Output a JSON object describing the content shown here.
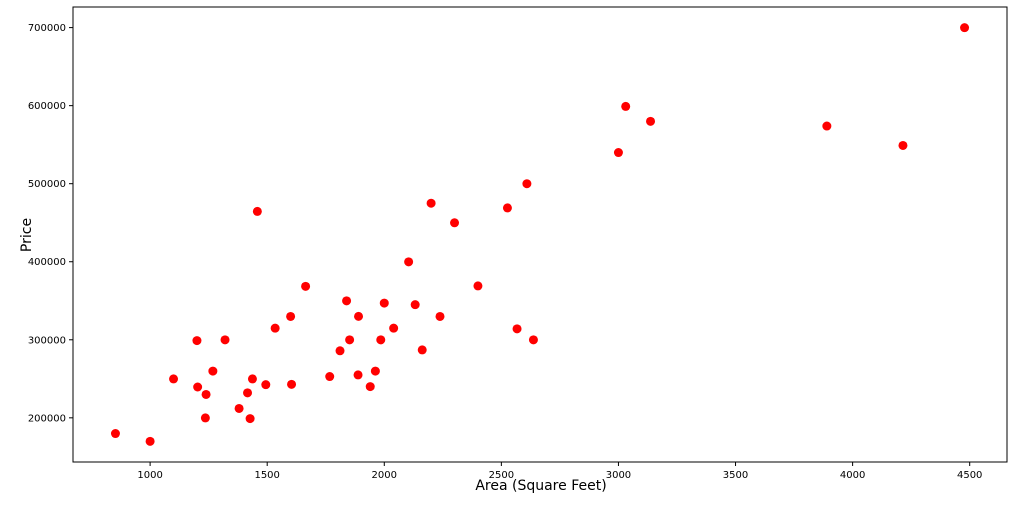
{
  "chart_data": {
    "type": "scatter",
    "x_label": "Area (Square Feet)",
    "y_label": "Price",
    "color": "#ff0000",
    "x": [
      2104,
      1600,
      2400,
      1416,
      3000,
      1985,
      1534,
      1427,
      1380,
      1494,
      1940,
      2000,
      1890,
      4478,
      1268,
      2300,
      1320,
      1236,
      2609,
      3031,
      1767,
      1888,
      1604,
      1962,
      3890,
      1100,
      1458,
      2526,
      2200,
      2637,
      1839,
      1000,
      2040,
      3137,
      1811,
      1437,
      1239,
      2132,
      4215,
      2162,
      1664,
      2238,
      2567,
      1200,
      852,
      1852,
      1203
    ],
    "values": [
      399900,
      329900,
      369000,
      232000,
      539900,
      299900,
      314900,
      198999,
      212000,
      242500,
      239999,
      347000,
      329999,
      699900,
      259900,
      449900,
      299900,
      199900,
      499998,
      599000,
      252900,
      255000,
      242900,
      259900,
      573900,
      249900,
      464500,
      469000,
      475000,
      299900,
      349900,
      169900,
      314900,
      579900,
      285900,
      249900,
      229900,
      345000,
      549000,
      287000,
      368500,
      329900,
      314000,
      299000,
      179900,
      299900,
      239500
    ],
    "xlim": [
      670.7,
      4659.3
    ],
    "ylim": [
      143400,
      726400
    ],
    "xticks": [
      1000,
      1500,
      2000,
      2500,
      3000,
      3500,
      4000,
      4500
    ],
    "yticks": [
      200000,
      300000,
      400000,
      500000,
      600000,
      700000
    ]
  }
}
